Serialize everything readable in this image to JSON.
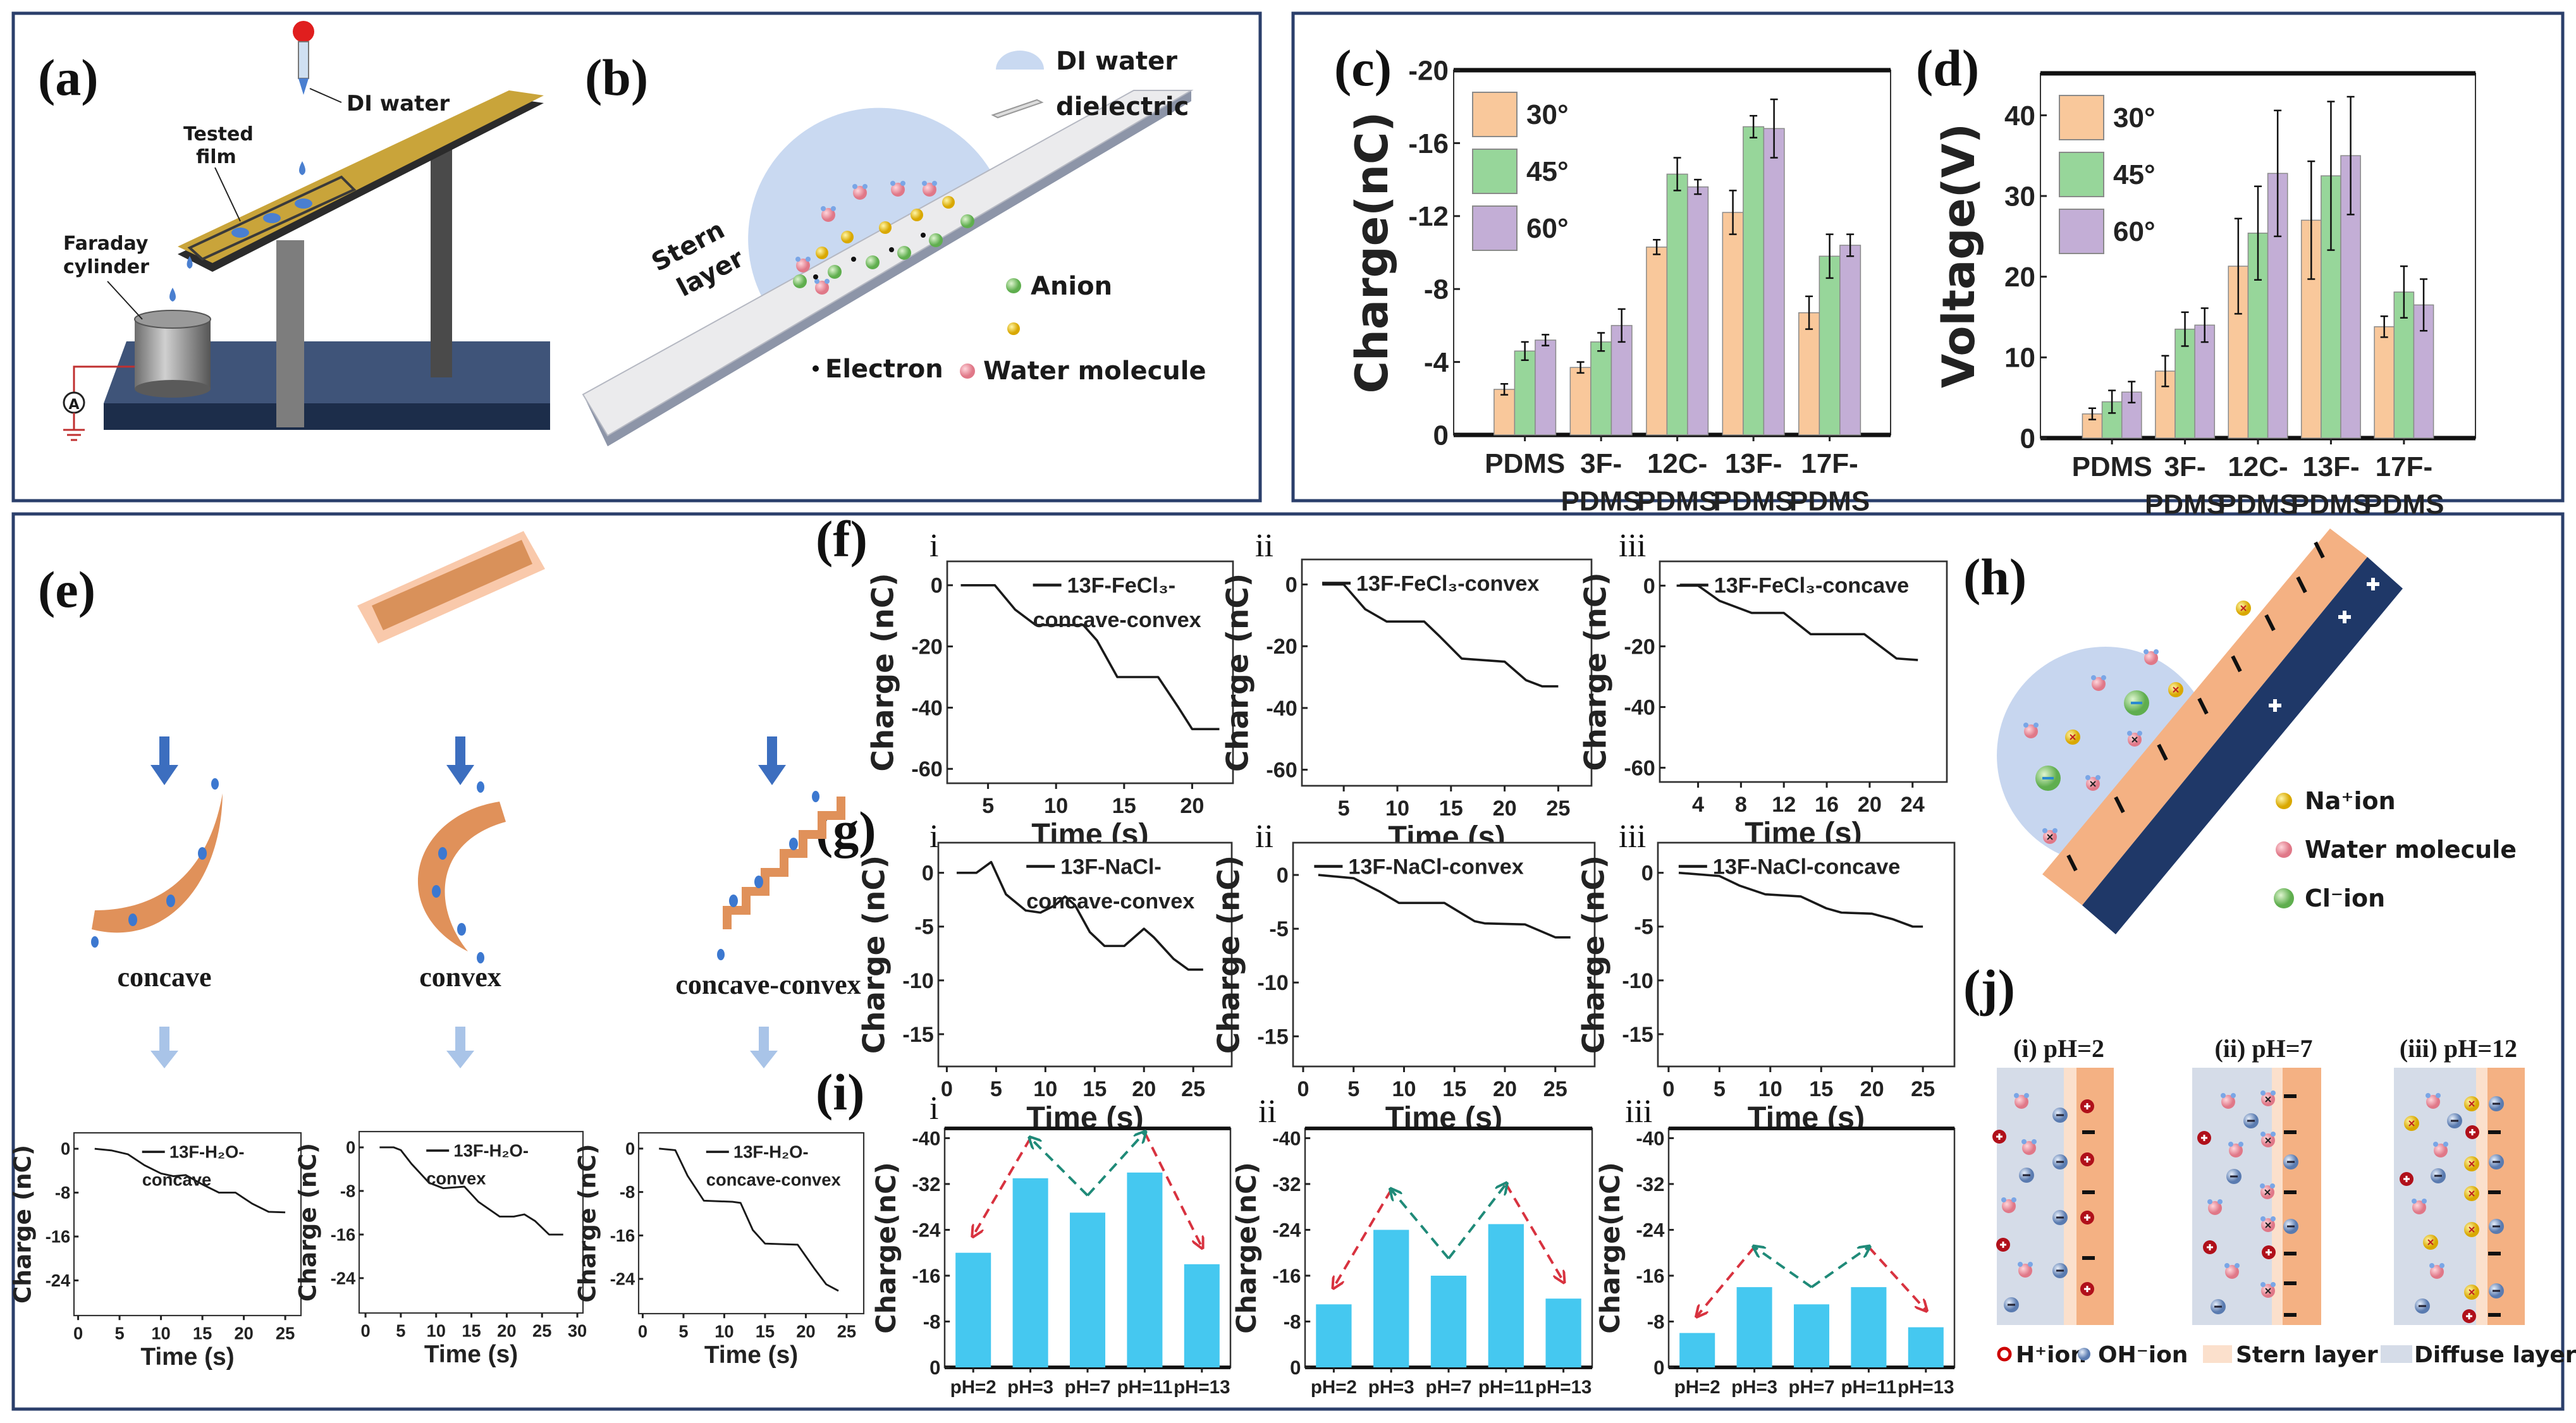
{
  "panels": {
    "a": "(a)",
    "b": "(b)",
    "c": "(c)",
    "d": "(d)",
    "e": "(e)",
    "f": "(f)",
    "g": "(g)",
    "h": "(h)",
    "i": "(i)",
    "j": "(j)"
  },
  "subpanels": [
    "i",
    "ii",
    "iii"
  ],
  "panel_a": {
    "di_water": "DI water",
    "tested_film": [
      "Tested",
      "film"
    ],
    "faraday": [
      "Faraday",
      "cylinder"
    ],
    "ammeter": "A"
  },
  "panel_b": {
    "legend_water": "DI water",
    "legend_dielectric": "dielectric",
    "stern": [
      "Stern",
      "layer"
    ],
    "anion": "Anion",
    "electron": "Electron",
    "water_molecule": "Water molecule"
  },
  "panel_e": {
    "shapes": [
      "concave",
      "convex",
      "concave-convex"
    ]
  },
  "panel_h": {
    "legend": [
      "Na⁺ion",
      "Water molecule",
      "Cl⁻ion"
    ]
  },
  "panel_j": {
    "titles": [
      "(i) pH=2",
      "(ii) pH=7",
      "(iii) pH=12"
    ],
    "legend": [
      "H⁺ion",
      "OH⁻ion",
      "Stern layer",
      "Diffuse layer"
    ]
  },
  "colors": {
    "frame": "#2b3f6b",
    "s30": "#F9C89B",
    "s45": "#97D69A",
    "s60": "#C3AED6",
    "bar_i": "#45C8F0",
    "stern": "#FBE0CC",
    "diffuse": "#D5DCE8",
    "film_orange": "#F4B183",
    "navy": "#1F3868"
  },
  "chart_data": [
    {
      "id": "c",
      "type": "bar",
      "title": "",
      "ylabel": "Charge(nC)",
      "xlabel": "",
      "ylim": [
        0,
        -20
      ],
      "xlim": [
        -0.935,
        4.8
      ],
      "yticks": [
        0,
        -4,
        -8,
        -12,
        -16,
        -20
      ],
      "categories": [
        [
          "PDMS"
        ],
        [
          "3F-",
          "PDMS"
        ],
        [
          "12C-",
          "PDMS"
        ],
        [
          "13F-",
          "PDMS"
        ],
        [
          "17F-",
          "PDMS"
        ]
      ],
      "legend_pos": "top-left",
      "series": [
        {
          "name": "30°",
          "values": [
            -2.5,
            -3.7,
            -10.3,
            -12.2,
            -6.7
          ],
          "errors": [
            0.3,
            0.3,
            0.4,
            1.2,
            0.9
          ]
        },
        {
          "name": "45°",
          "values": [
            -4.6,
            -5.1,
            -14.3,
            -16.9,
            -9.8
          ],
          "errors": [
            0.5,
            0.5,
            0.9,
            0.6,
            1.2
          ]
        },
        {
          "name": "60°",
          "values": [
            -5.2,
            -6.0,
            -13.6,
            -16.8,
            -10.4
          ],
          "errors": [
            0.3,
            0.9,
            0.4,
            1.6,
            0.6
          ]
        }
      ]
    },
    {
      "id": "d",
      "type": "bar",
      "title": "",
      "ylabel": "Voltage(V)",
      "xlabel": "",
      "ylim": [
        0,
        45.2
      ],
      "xlim": [
        -0.98,
        4.98
      ],
      "yticks": [
        0,
        10,
        20,
        30,
        40
      ],
      "categories": [
        [
          "PDMS"
        ],
        [
          "3F-",
          "PDMS"
        ],
        [
          "12C-",
          "PDMS"
        ],
        [
          "13F-",
          "PDMS"
        ],
        [
          "17F-",
          "PDMS"
        ]
      ],
      "legend_pos": "top-left",
      "series": [
        {
          "name": "30°",
          "values": [
            3.0,
            8.3,
            21.3,
            27.0,
            13.8
          ],
          "errors": [
            0.7,
            1.9,
            5.9,
            7.3,
            1.3
          ]
        },
        {
          "name": "45°",
          "values": [
            4.5,
            13.5,
            25.4,
            32.5,
            18.1
          ],
          "errors": [
            1.4,
            2.1,
            5.8,
            9.2,
            3.2
          ]
        },
        {
          "name": "60°",
          "values": [
            5.7,
            14.0,
            32.8,
            35.0,
            16.5
          ],
          "errors": [
            1.3,
            2.1,
            7.8,
            7.3,
            3.2
          ]
        }
      ]
    },
    {
      "id": "e1",
      "type": "line",
      "ylabel": "Charge (nC)",
      "xlabel": "Time (s)",
      "ylim": [
        -30.4,
        2.9
      ],
      "xlim": [
        -0.5,
        26.9
      ],
      "yticks": [
        0,
        -8,
        -16,
        -24
      ],
      "xticks": [
        0,
        5,
        10,
        15,
        20,
        25
      ],
      "legend_pos": "top-center",
      "legend": [
        "13F-H₂O-",
        "concave"
      ],
      "x": [
        2,
        4,
        6,
        8,
        10,
        11.5,
        13,
        15,
        17,
        19,
        21,
        23,
        25
      ],
      "y": [
        0,
        -0.3,
        -1,
        -3,
        -4.5,
        -5,
        -4.8,
        -6.5,
        -8,
        -8,
        -10,
        -11.5,
        -11.6
      ]
    },
    {
      "id": "e2",
      "type": "line",
      "ylabel": "Charge (nC)",
      "xlabel": "Time (s)",
      "ylim": [
        -30.4,
        2.9
      ],
      "xlim": [
        -0.9,
        30.8
      ],
      "yticks": [
        0,
        -8,
        -16,
        -24
      ],
      "xticks": [
        0,
        5,
        10,
        15,
        20,
        25,
        30
      ],
      "legend_pos": "top-center",
      "legend": [
        "13F-H₂O-",
        "convex"
      ],
      "x": [
        2,
        4,
        5,
        6.5,
        9,
        11,
        14,
        16,
        19,
        21,
        22.5,
        24,
        26,
        28
      ],
      "y": [
        0,
        0,
        -0.5,
        -3,
        -6.5,
        -7.5,
        -7.2,
        -10,
        -12.7,
        -12.7,
        -12.3,
        -13.5,
        -16,
        -16
      ]
    },
    {
      "id": "e3",
      "type": "line",
      "ylabel": "Charge (nC)",
      "xlabel": "Time (s)",
      "ylim": [
        -30.4,
        2.9
      ],
      "xlim": [
        -0.5,
        27.1
      ],
      "yticks": [
        0,
        -8,
        -16,
        -24
      ],
      "xticks": [
        0,
        5,
        10,
        15,
        20,
        25
      ],
      "legend_pos": "top-center",
      "legend": [
        "13F-H₂O-",
        "concave-convex"
      ],
      "x": [
        2,
        4,
        5.5,
        7.5,
        11,
        12,
        13.5,
        15,
        19,
        21,
        22.5,
        24
      ],
      "y": [
        0,
        -0.3,
        -5,
        -9.6,
        -9.8,
        -10,
        -15,
        -17.5,
        -17.7,
        -22,
        -25,
        -26.2
      ]
    },
    {
      "id": "f1",
      "type": "line",
      "ylabel": "Charge (nC)",
      "xlabel": "Time (s)",
      "ylim": [
        -64.7,
        7.8
      ],
      "xlim": [
        2.0,
        23.0
      ],
      "yticks": [
        0,
        -20,
        -40,
        -60
      ],
      "xticks": [
        5,
        10,
        15,
        20
      ],
      "legend_pos": "top-center",
      "legend": [
        "13F-FeCl₃-",
        "concave-convex"
      ],
      "x": [
        3,
        5.5,
        7,
        8.5,
        12,
        13,
        14.5,
        17.5,
        19,
        20,
        22
      ],
      "y": [
        0,
        0,
        -8,
        -13,
        -13,
        -18,
        -30,
        -30,
        -40,
        -47,
        -47
      ]
    },
    {
      "id": "f2",
      "type": "line",
      "ylabel": "Charge (nC)",
      "xlabel": "Time (s)",
      "ylim": [
        -65.2,
        8.1
      ],
      "xlim": [
        1.1,
        28.1
      ],
      "yticks": [
        0,
        -20,
        -40,
        -60
      ],
      "xticks": [
        5,
        10,
        15,
        20,
        25
      ],
      "legend_pos": "top-left",
      "legend": [
        "13F-FeCl₃-convex"
      ],
      "x": [
        3,
        5,
        7,
        9,
        12.5,
        14,
        16,
        20,
        22,
        23.5,
        25
      ],
      "y": [
        0,
        0,
        -8,
        -12,
        -12,
        -17,
        -24,
        -25,
        -31,
        -33,
        -33
      ]
    },
    {
      "id": "f3",
      "type": "line",
      "ylabel": "Charge (nC)",
      "xlabel": "Time (s)",
      "ylim": [
        -64.7,
        8.0
      ],
      "xlim": [
        0.43,
        27.2
      ],
      "yticks": [
        0,
        -20,
        -40,
        -60
      ],
      "xticks": [
        4,
        8,
        12,
        16,
        20,
        24
      ],
      "legend_pos": "top-left",
      "legend": [
        "13F-FeCl₃-concave"
      ],
      "x": [
        2,
        4,
        6,
        9,
        12,
        14.5,
        19.5,
        22.5,
        24.5
      ],
      "y": [
        0,
        0,
        -5,
        -9,
        -9,
        -16,
        -16,
        -24,
        -24.5
      ]
    },
    {
      "id": "g1",
      "type": "line",
      "ylabel": "Charge (nC)",
      "xlabel": "Time (s)",
      "ylim": [
        -18,
        2.8
      ],
      "xlim": [
        -0.86,
        28.9
      ],
      "yticks": [
        0,
        -5,
        -10,
        -15
      ],
      "xticks": [
        0,
        5,
        10,
        15,
        20,
        25
      ],
      "legend_pos": "top-center",
      "legend": [
        "13F-NaCl-",
        "concave-convex"
      ],
      "x": [
        1,
        3,
        4.5,
        6,
        8,
        9.5,
        11,
        12,
        13,
        14.5,
        16,
        18,
        20,
        21,
        23,
        24.5,
        26
      ],
      "y": [
        0,
        0,
        1,
        -2,
        -3.5,
        -3.7,
        -3,
        -2.2,
        -3,
        -5.5,
        -6.8,
        -6.8,
        -5.2,
        -6,
        -8,
        -9,
        -9
      ]
    },
    {
      "id": "g2",
      "type": "line",
      "ylabel": "Charge (nC)",
      "xlabel": "Time (s)",
      "ylim": [
        -17.8,
        3.0
      ],
      "xlim": [
        -1,
        28.9
      ],
      "yticks": [
        0,
        -5,
        -10,
        -15
      ],
      "xticks": [
        0,
        5,
        10,
        15,
        20,
        25
      ],
      "legend_pos": "top-left",
      "legend": [
        "13F-NaCl-convex"
      ],
      "x": [
        1.5,
        5,
        7.5,
        9.5,
        14,
        17,
        18,
        22,
        25,
        26.5
      ],
      "y": [
        0,
        -0.3,
        -1.5,
        -2.6,
        -2.6,
        -4.3,
        -4.5,
        -4.6,
        -5.8,
        -5.8
      ]
    },
    {
      "id": "g3",
      "type": "line",
      "ylabel": "Charge (nC)",
      "xlabel": "Time (s)",
      "ylim": [
        -18,
        2.8
      ],
      "xlim": [
        -1.05,
        28.1
      ],
      "yticks": [
        0,
        -5,
        -10,
        -15
      ],
      "xticks": [
        0,
        5,
        10,
        15,
        20,
        25
      ],
      "legend_pos": "top-left",
      "legend": [
        "13F-NaCl-concave"
      ],
      "x": [
        1,
        5,
        7,
        9.5,
        13,
        15.5,
        17,
        20,
        22,
        24,
        25
      ],
      "y": [
        0,
        -0.3,
        -1.2,
        -2,
        -2.2,
        -3.3,
        -3.7,
        -3.8,
        -4.3,
        -5,
        -5
      ]
    },
    {
      "id": "i1",
      "type": "bar",
      "ylabel": "Charge(nC)",
      "xlabel": "",
      "ylim": [
        0,
        -41.7
      ],
      "xlim": [
        -0.5,
        4.5
      ],
      "yticks": [
        0,
        -8,
        -16,
        -24,
        -32,
        -40
      ],
      "categories": [
        [
          "pH=2"
        ],
        [
          "pH=3"
        ],
        [
          "pH=7"
        ],
        [
          "pH=11"
        ],
        [
          "pH=13"
        ]
      ],
      "series": [
        {
          "name": "",
          "values": [
            -20,
            -33,
            -27,
            -34,
            -18
          ]
        }
      ]
    },
    {
      "id": "i2",
      "type": "bar",
      "ylabel": "Charge(nC)",
      "xlabel": "",
      "ylim": [
        0,
        -41.7
      ],
      "xlim": [
        -0.5,
        4.5
      ],
      "yticks": [
        0,
        -8,
        -16,
        -24,
        -32,
        -40
      ],
      "categories": [
        [
          "pH=2"
        ],
        [
          "pH=3"
        ],
        [
          "pH=7"
        ],
        [
          "pH=11"
        ],
        [
          "pH=13"
        ]
      ],
      "series": [
        {
          "name": "",
          "values": [
            -11,
            -24,
            -16,
            -25,
            -12
          ]
        }
      ]
    },
    {
      "id": "i3",
      "type": "bar",
      "ylabel": "Charge(nC)",
      "xlabel": "",
      "ylim": [
        0,
        -41.7
      ],
      "xlim": [
        -0.5,
        4.5
      ],
      "yticks": [
        0,
        -8,
        -16,
        -24,
        -32,
        -40
      ],
      "categories": [
        [
          "pH=2"
        ],
        [
          "pH=3"
        ],
        [
          "pH=7"
        ],
        [
          "pH=11"
        ],
        [
          "pH=13"
        ]
      ],
      "series": [
        {
          "name": "",
          "values": [
            -6,
            -14,
            -11,
            -14,
            -7
          ]
        }
      ]
    }
  ]
}
